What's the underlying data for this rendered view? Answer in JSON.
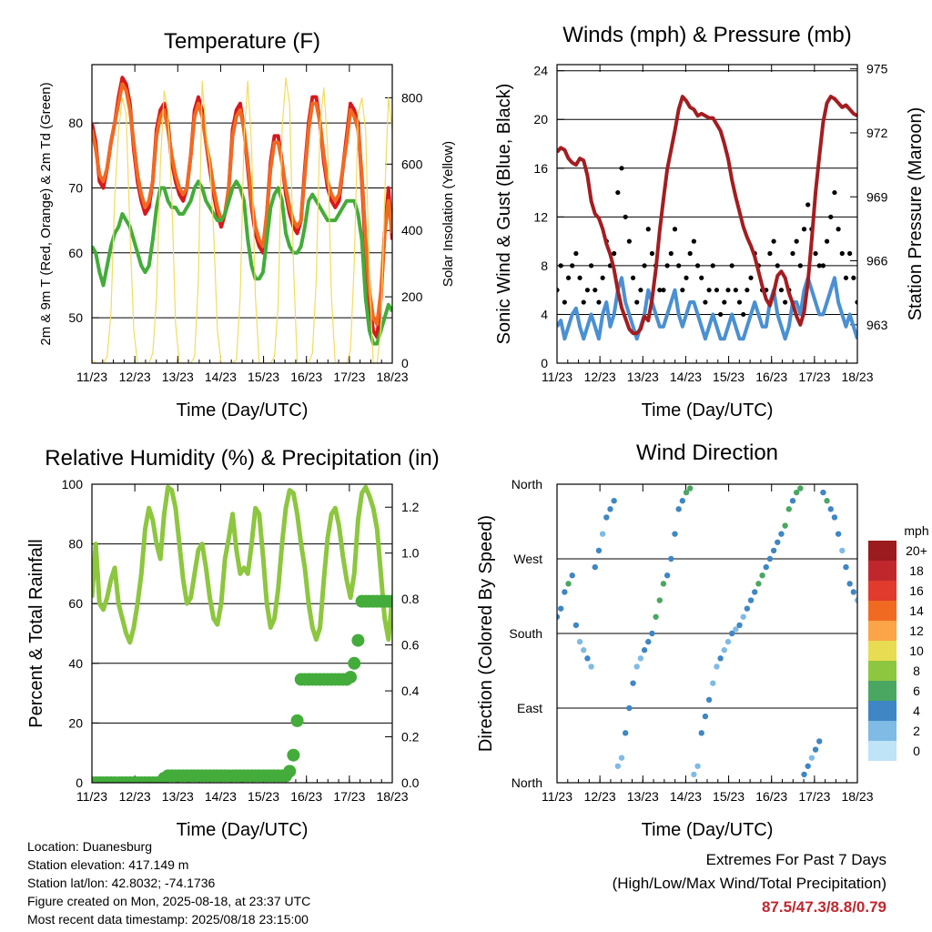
{
  "chart_data": [
    {
      "type": "line",
      "title": "Temperature (F)",
      "xlabel": "Time (Day/UTC)",
      "ylabel": "2m & 9m T (Red, Orange) & 2m Td (Green)",
      "ylabel_right": "Solar Insolation (Yellow)",
      "x_ticks": [
        "11/23",
        "12/23",
        "13/23",
        "14/23",
        "15/23",
        "16/23",
        "17/23",
        "18/23"
      ],
      "ylim": [
        43,
        89
      ],
      "y_ticks": [
        50,
        60,
        70,
        80
      ],
      "ylim_right": [
        0,
        900
      ],
      "y_ticks_right": [
        0,
        200,
        400,
        600,
        800
      ],
      "grid": "horizontal",
      "series": [
        {
          "color": "#d7191c",
          "axis": "left",
          "values": [
            80,
            77,
            71,
            70,
            73,
            77,
            80,
            84,
            87,
            86,
            83,
            76,
            71,
            68,
            66,
            67,
            71,
            79,
            82,
            83,
            80,
            74,
            71,
            69,
            68,
            70,
            75,
            82,
            84,
            82,
            77,
            73,
            69,
            66,
            64,
            66,
            70,
            79,
            82,
            83,
            79,
            73,
            67,
            63,
            61,
            60,
            66,
            74,
            78,
            78,
            74,
            69,
            66,
            64,
            63,
            65,
            73,
            80,
            84,
            84,
            80,
            74,
            70,
            68,
            67,
            68,
            73,
            78,
            83,
            82,
            80,
            71,
            60,
            52,
            48,
            47,
            53,
            63,
            70,
            62
          ]
        },
        {
          "color": "#f16a22",
          "axis": "left",
          "values": [
            79,
            76,
            72,
            71,
            73,
            77,
            80,
            83,
            86,
            85,
            82,
            77,
            72,
            69,
            67,
            68,
            71,
            78,
            81,
            82,
            79,
            75,
            72,
            70,
            69,
            70,
            75,
            81,
            83,
            81,
            77,
            74,
            70,
            67,
            65,
            66,
            70,
            78,
            81,
            82,
            79,
            74,
            68,
            64,
            62,
            61,
            66,
            73,
            77,
            77,
            74,
            70,
            67,
            65,
            64,
            65,
            72,
            79,
            83,
            83,
            80,
            75,
            71,
            69,
            68,
            69,
            73,
            77,
            82,
            81,
            79,
            72,
            62,
            54,
            50,
            49,
            54,
            63,
            68,
            63
          ]
        },
        {
          "color": "#43ac3a",
          "axis": "left",
          "values": [
            61,
            60,
            57,
            55,
            58,
            61,
            63,
            64,
            66,
            65,
            64,
            62,
            60,
            58,
            57,
            58,
            62,
            67,
            70,
            70,
            68,
            67,
            67,
            66,
            66,
            67,
            68,
            70,
            71,
            70,
            68,
            67,
            66,
            65,
            65,
            66,
            68,
            70,
            71,
            70,
            68,
            62,
            58,
            56,
            56,
            57,
            62,
            67,
            69,
            70,
            68,
            63,
            61,
            60,
            60,
            61,
            64,
            68,
            69,
            68,
            67,
            66,
            65,
            65,
            65,
            66,
            67,
            68,
            68,
            68,
            66,
            62,
            53,
            48,
            46,
            46,
            48,
            50,
            52,
            51
          ]
        },
        {
          "color": "#f2dc5d",
          "axis": "right",
          "values": [
            10,
            0,
            0,
            0,
            20,
            150,
            500,
            700,
            800,
            750,
            400,
            100,
            0,
            0,
            0,
            0,
            30,
            200,
            600,
            820,
            760,
            500,
            120,
            0,
            0,
            0,
            0,
            20,
            250,
            850,
            700,
            600,
            400,
            100,
            0,
            0,
            0,
            0,
            10,
            200,
            680,
            850,
            650,
            200,
            0,
            0,
            0,
            0,
            20,
            180,
            700,
            860,
            780,
            300,
            0,
            0,
            0,
            0,
            30,
            250,
            720,
            830,
            650,
            200,
            0,
            0,
            0,
            0,
            40,
            300,
            750,
            800,
            700,
            250,
            0,
            0,
            100,
            500,
            800,
            700
          ]
        }
      ]
    },
    {
      "type": "line",
      "title": "Winds (mph) & Pressure (mb)",
      "xlabel": "Time (Day/UTC)",
      "ylabel": "Sonic Wind & Gust (Blue, Black)",
      "ylabel_right": "Station Pressure (Maroon)",
      "x_ticks": [
        "11/23",
        "12/23",
        "13/23",
        "14/23",
        "15/23",
        "16/23",
        "17/23",
        "18/23"
      ],
      "ylim": [
        0,
        24.5
      ],
      "y_ticks": [
        0,
        4,
        8,
        12,
        16,
        20,
        24
      ],
      "ylim_right": [
        961.2,
        975.2
      ],
      "y_ticks_right": [
        963,
        966,
        969,
        972,
        975
      ],
      "grid": "horizontal",
      "series": [
        {
          "color": "#4a90d2",
          "axis": "left",
          "values": [
            3,
            3.5,
            2,
            3,
            4,
            4.5,
            3,
            2,
            3,
            4,
            3,
            2,
            4,
            5,
            3,
            4,
            6,
            7,
            5,
            4,
            3,
            2,
            3,
            4,
            6,
            5,
            4,
            3,
            3,
            4,
            5,
            6,
            4,
            3,
            4,
            5,
            5,
            4,
            3,
            2,
            3,
            4,
            3,
            2,
            2,
            3,
            4,
            3,
            2,
            2,
            3,
            4,
            5,
            4,
            3,
            3,
            5,
            6,
            4,
            3,
            2,
            3,
            5,
            5,
            4,
            6,
            7,
            6,
            5,
            4,
            4,
            5,
            6,
            7,
            5,
            4,
            3,
            4,
            3,
            2
          ]
        },
        {
          "color": "#000000",
          "axis": "left",
          "values": [
            6,
            8,
            5,
            7,
            8,
            9,
            7,
            5,
            6,
            8,
            6,
            5,
            7,
            10,
            8,
            9,
            14,
            16,
            12,
            10,
            7,
            5,
            6,
            8,
            11,
            9,
            8,
            6,
            6,
            8,
            9,
            11,
            8,
            6,
            7,
            9,
            10,
            8,
            7,
            5,
            6,
            8,
            6,
            4,
            5,
            6,
            8,
            6,
            5,
            4,
            6,
            7,
            9,
            8,
            6,
            6,
            9,
            10,
            8,
            6,
            5,
            6,
            9,
            10,
            8,
            11,
            13,
            11,
            9,
            8,
            8,
            10,
            12,
            14,
            11,
            9,
            7,
            9,
            7,
            5
          ]
        },
        {
          "color": "#a31d20",
          "axis": "right",
          "values": [
            971.1,
            971.3,
            971.2,
            970.8,
            970.6,
            970.5,
            970.8,
            970.7,
            970,
            968.8,
            968.2,
            968,
            967.5,
            966.8,
            966.3,
            965.6,
            964.6,
            963.8,
            963.3,
            962.8,
            962.6,
            962.6,
            962.8,
            963.4,
            963.2,
            964.2,
            965.6,
            967.4,
            968.9,
            970.3,
            971.2,
            972.1,
            973.1,
            973.7,
            973.5,
            973.2,
            973.1,
            972.8,
            972.9,
            972.8,
            972.7,
            972.7,
            972.4,
            972.1,
            971.5,
            970.8,
            969.8,
            969,
            968.3,
            967.6,
            967.1,
            966.7,
            966.2,
            965.5,
            964.8,
            964.2,
            963.9,
            964.5,
            965.3,
            965.5,
            965.2,
            964.5,
            964,
            963.4,
            963,
            963.6,
            965,
            967,
            969.2,
            970.9,
            972.5,
            973.4,
            973.7,
            973.6,
            973.4,
            973.2,
            973.3,
            973.1,
            972.9,
            972.8
          ]
        }
      ]
    },
    {
      "type": "line",
      "title": "Relative Humidity (%) & Precipitation (in)",
      "xlabel": "Time (Day/UTC)",
      "ylabel": "Percent & Total Rainfall",
      "x_ticks": [
        "11/23",
        "12/23",
        "13/23",
        "14/23",
        "15/23",
        "16/23",
        "17/23",
        "18/23"
      ],
      "ylim": [
        0,
        100
      ],
      "y_ticks": [
        0,
        20,
        40,
        60,
        80,
        100
      ],
      "ylim_right": [
        0,
        1.3
      ],
      "y_ticks_right": [
        0.0,
        0.2,
        0.4,
        0.6,
        0.8,
        1.0,
        1.2
      ],
      "grid": "horizontal",
      "series": [
        {
          "color": "#8dc63f",
          "axis": "left",
          "values": [
            62,
            80,
            60,
            58,
            62,
            68,
            72,
            60,
            55,
            50,
            47,
            52,
            60,
            70,
            85,
            92,
            88,
            80,
            75,
            90,
            99,
            98,
            92,
            80,
            68,
            60,
            62,
            70,
            78,
            80,
            72,
            62,
            55,
            53,
            60,
            75,
            82,
            90,
            78,
            70,
            72,
            70,
            80,
            92,
            90,
            76,
            60,
            52,
            55,
            65,
            80,
            92,
            98,
            97,
            90,
            80,
            72,
            60,
            52,
            48,
            52,
            68,
            82,
            90,
            92,
            86,
            76,
            68,
            62,
            70,
            88,
            97,
            99,
            96,
            92,
            85,
            70,
            55,
            48,
            62
          ]
        },
        {
          "color": "#43ac3a",
          "axis": "right",
          "values": [
            0,
            0,
            0,
            0,
            0,
            0,
            0,
            0,
            0,
            0,
            0,
            0,
            0,
            0,
            0,
            0,
            0,
            0,
            0,
            0.02,
            0.03,
            0.03,
            0.03,
            0.03,
            0.03,
            0.03,
            0.03,
            0.03,
            0.03,
            0.03,
            0.03,
            0.03,
            0.03,
            0.03,
            0.03,
            0.03,
            0.03,
            0.03,
            0.03,
            0.03,
            0.03,
            0.03,
            0.03,
            0.03,
            0.03,
            0.03,
            0.03,
            0.03,
            0.03,
            0.03,
            0.03,
            0.03,
            0.05,
            0.12,
            0.27,
            0.45,
            0.45,
            0.45,
            0.45,
            0.45,
            0.45,
            0.45,
            0.45,
            0.45,
            0.45,
            0.45,
            0.45,
            0.45,
            0.46,
            0.52,
            0.62,
            0.79,
            0.79,
            0.79,
            0.79,
            0.79,
            0.79,
            0.79,
            0.79,
            0.79
          ]
        }
      ]
    },
    {
      "type": "scatter",
      "title": "Wind Direction",
      "xlabel": "Time (Day/UTC)",
      "ylabel": "Direction (Colored By Speed)",
      "x_ticks": [
        "11/23",
        "12/23",
        "13/23",
        "14/23",
        "15/23",
        "16/23",
        "17/23",
        "18/23"
      ],
      "y_tick_labels": [
        "North",
        "East",
        "South",
        "West",
        "North"
      ],
      "ylim": [
        0,
        360
      ],
      "grid": "horizontal",
      "colorbar": {
        "title": "mph",
        "labels": [
          "20+",
          "18",
          "16",
          "14",
          "12",
          "10",
          "8",
          "6",
          "4",
          "2",
          "0"
        ],
        "colors": [
          "#9b1b1e",
          "#c0272d",
          "#e03b2c",
          "#f16a22",
          "#fba448",
          "#e8dc52",
          "#8dc63f",
          "#4aa761",
          "#3f86c4",
          "#7fbbe5",
          "#bfe3f7"
        ]
      },
      "series": [
        {
          "direction": [
            200,
            210,
            230,
            240,
            250,
            190,
            170,
            160,
            150,
            140,
            260,
            280,
            300,
            320,
            330,
            340,
            20,
            30,
            60,
            90,
            120,
            140,
            150,
            160,
            170,
            180,
            200,
            220,
            240,
            250,
            270,
            300,
            330,
            340,
            350,
            355,
            10,
            20,
            60,
            80,
            100,
            120,
            140,
            150,
            160,
            170,
            180,
            185,
            190,
            200,
            210,
            220,
            230,
            240,
            250,
            260,
            270,
            280,
            290,
            300,
            310,
            330,
            340,
            350,
            355,
            10,
            20,
            30,
            40,
            50,
            350,
            340,
            330,
            320,
            300,
            280,
            260,
            240,
            230,
            220
          ],
          "speed": [
            3,
            4,
            4,
            5,
            4,
            3,
            2,
            2,
            3,
            2,
            4,
            3,
            2,
            3,
            4,
            4,
            2,
            1,
            3,
            4,
            3,
            2,
            2,
            3,
            4,
            4,
            5,
            5,
            6,
            4,
            3,
            4,
            3,
            4,
            5,
            6,
            2,
            2,
            3,
            4,
            3,
            2,
            2,
            3,
            2,
            2,
            3,
            2,
            3,
            2,
            3,
            4,
            4,
            5,
            5,
            4,
            3,
            4,
            3,
            4,
            5,
            6,
            4,
            5,
            6,
            4,
            3,
            2,
            3,
            4,
            4,
            5,
            3,
            4,
            3,
            2,
            3,
            4,
            3,
            2
          ]
        }
      ]
    }
  ],
  "info": {
    "location": "Location: Duanesburg",
    "elevation": "Station elevation: 417.149 m",
    "latlon": "Station lat/lon: 42.8032; -74.1736",
    "created": "Figure created on Mon, 2025-08-18, at 23:37 UTC",
    "timestamp": "Most recent data timestamp: 2025/08/18 23:15:00"
  },
  "extremes": {
    "title": "Extremes For Past 7 Days",
    "subtitle": "(High/Low/Max Wind/Total Precipitation)",
    "values": "87.5/47.3/8.8/0.79"
  }
}
